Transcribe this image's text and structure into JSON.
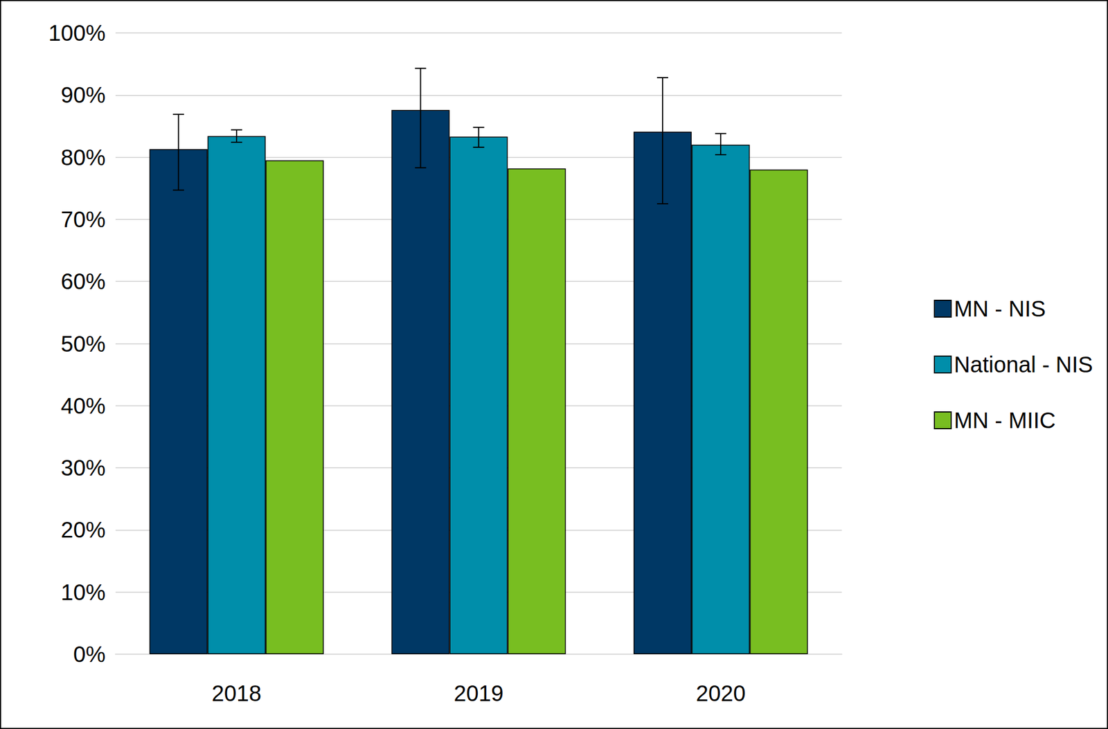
{
  "chart_data": {
    "type": "bar",
    "categories": [
      "2018",
      "2019",
      "2020"
    ],
    "series": [
      {
        "name": "MN - NIS",
        "color": "#003865",
        "values": [
          81.3,
          87.6,
          84.1
        ],
        "error_bars": [
          [
            74.7,
            86.9
          ],
          [
            78.3,
            94.3
          ],
          [
            72.5,
            92.8
          ]
        ]
      },
      {
        "name": "National - NIS",
        "color": "#008eaa",
        "values": [
          83.4,
          83.3,
          82.0
        ],
        "error_bars": [
          [
            82.4,
            84.4
          ],
          [
            81.6,
            84.8
          ],
          [
            80.4,
            83.8
          ]
        ]
      },
      {
        "name": "MN - MIIC",
        "color": "#78be21",
        "values": [
          79.5,
          78.2,
          78.0
        ]
      }
    ],
    "ylim": [
      0,
      100
    ],
    "yticks": [
      {
        "value": 0,
        "label": "0%"
      },
      {
        "value": 10,
        "label": "10%"
      },
      {
        "value": 20,
        "label": "20%"
      },
      {
        "value": 30,
        "label": "30%"
      },
      {
        "value": 40,
        "label": "40%"
      },
      {
        "value": 50,
        "label": "50%"
      },
      {
        "value": 60,
        "label": "60%"
      },
      {
        "value": 70,
        "label": "70%"
      },
      {
        "value": 80,
        "label": "80%"
      },
      {
        "value": 90,
        "label": "90%"
      },
      {
        "value": 100,
        "label": "100%"
      }
    ],
    "grid": true,
    "legend": "right"
  }
}
